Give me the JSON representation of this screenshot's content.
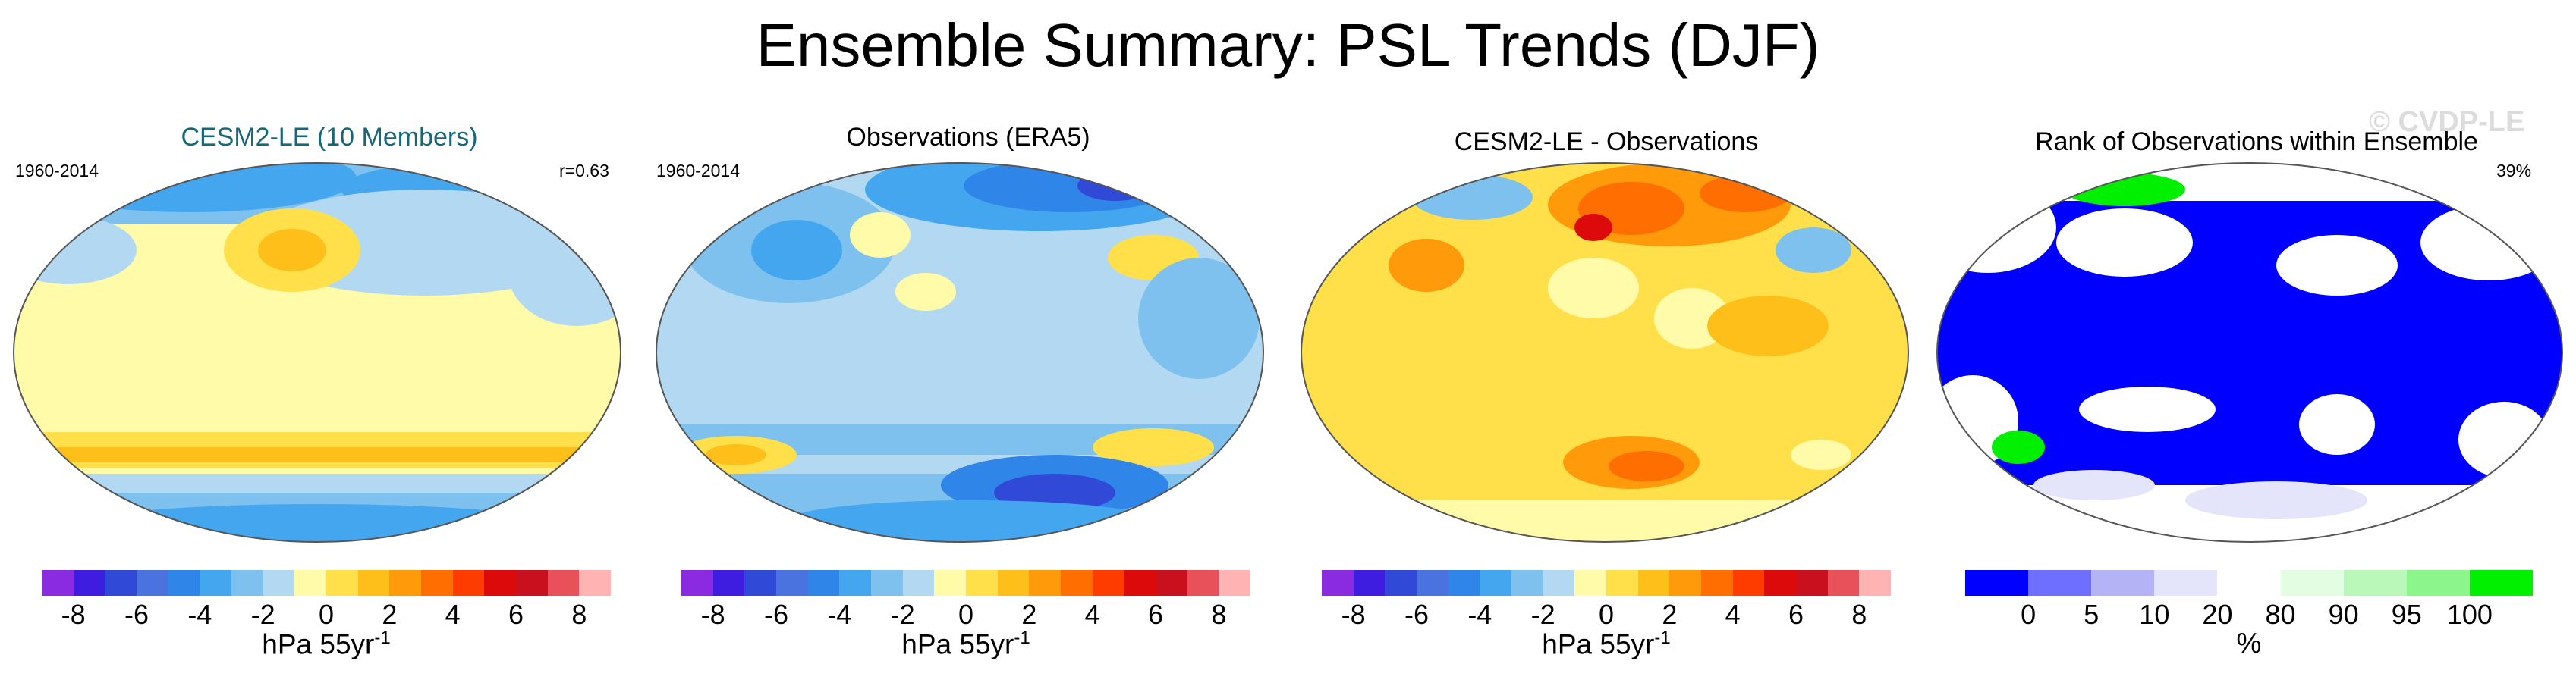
{
  "figure": {
    "title": "Ensemble Summary: PSL Trends (DJF)",
    "watermark": "© CVDP-LE"
  },
  "panels": [
    {
      "title": "CESM2-LE (10 Members)",
      "left_label": "1960-2014",
      "right_label": "r=0.63"
    },
    {
      "title": "Observations (ERA5)",
      "left_label": "1960-2014",
      "right_label": ""
    },
    {
      "title": "CESM2-LE - Observations",
      "left_label": "",
      "right_label": ""
    },
    {
      "title": "Rank of Observations within Ensemble",
      "left_label": "",
      "right_label": "39%"
    }
  ],
  "colorbars": {
    "trend": {
      "colors": [
        "#8a2be2",
        "#3f1de0",
        "#3049d6",
        "#4a73e0",
        "#2f86e8",
        "#45a6f0",
        "#7ec0ee",
        "#b3d9f2",
        "#fffba8",
        "#ffe04a",
        "#ffbf1a",
        "#ff9a0a",
        "#ff6e00",
        "#ff3c00",
        "#dc0a0a",
        "#c8101e",
        "#e8505a",
        "#ffb3b3"
      ],
      "ticks": [
        "-8",
        "-6",
        "-4",
        "-2",
        "0",
        "2",
        "4",
        "6",
        "8"
      ],
      "units": "hPa 55yr",
      "units_sup": "-1"
    },
    "rank": {
      "colors": [
        "#0000ff",
        "#6f6fff",
        "#b3b3f5",
        "#e4e4fa",
        "#ffffff",
        "#e3fde3",
        "#b9f8b9",
        "#8cf58c",
        "#00f000"
      ],
      "ticks": [
        "0",
        "5",
        "10",
        "20",
        "80",
        "90",
        "95",
        "100"
      ],
      "units": "%"
    }
  }
}
